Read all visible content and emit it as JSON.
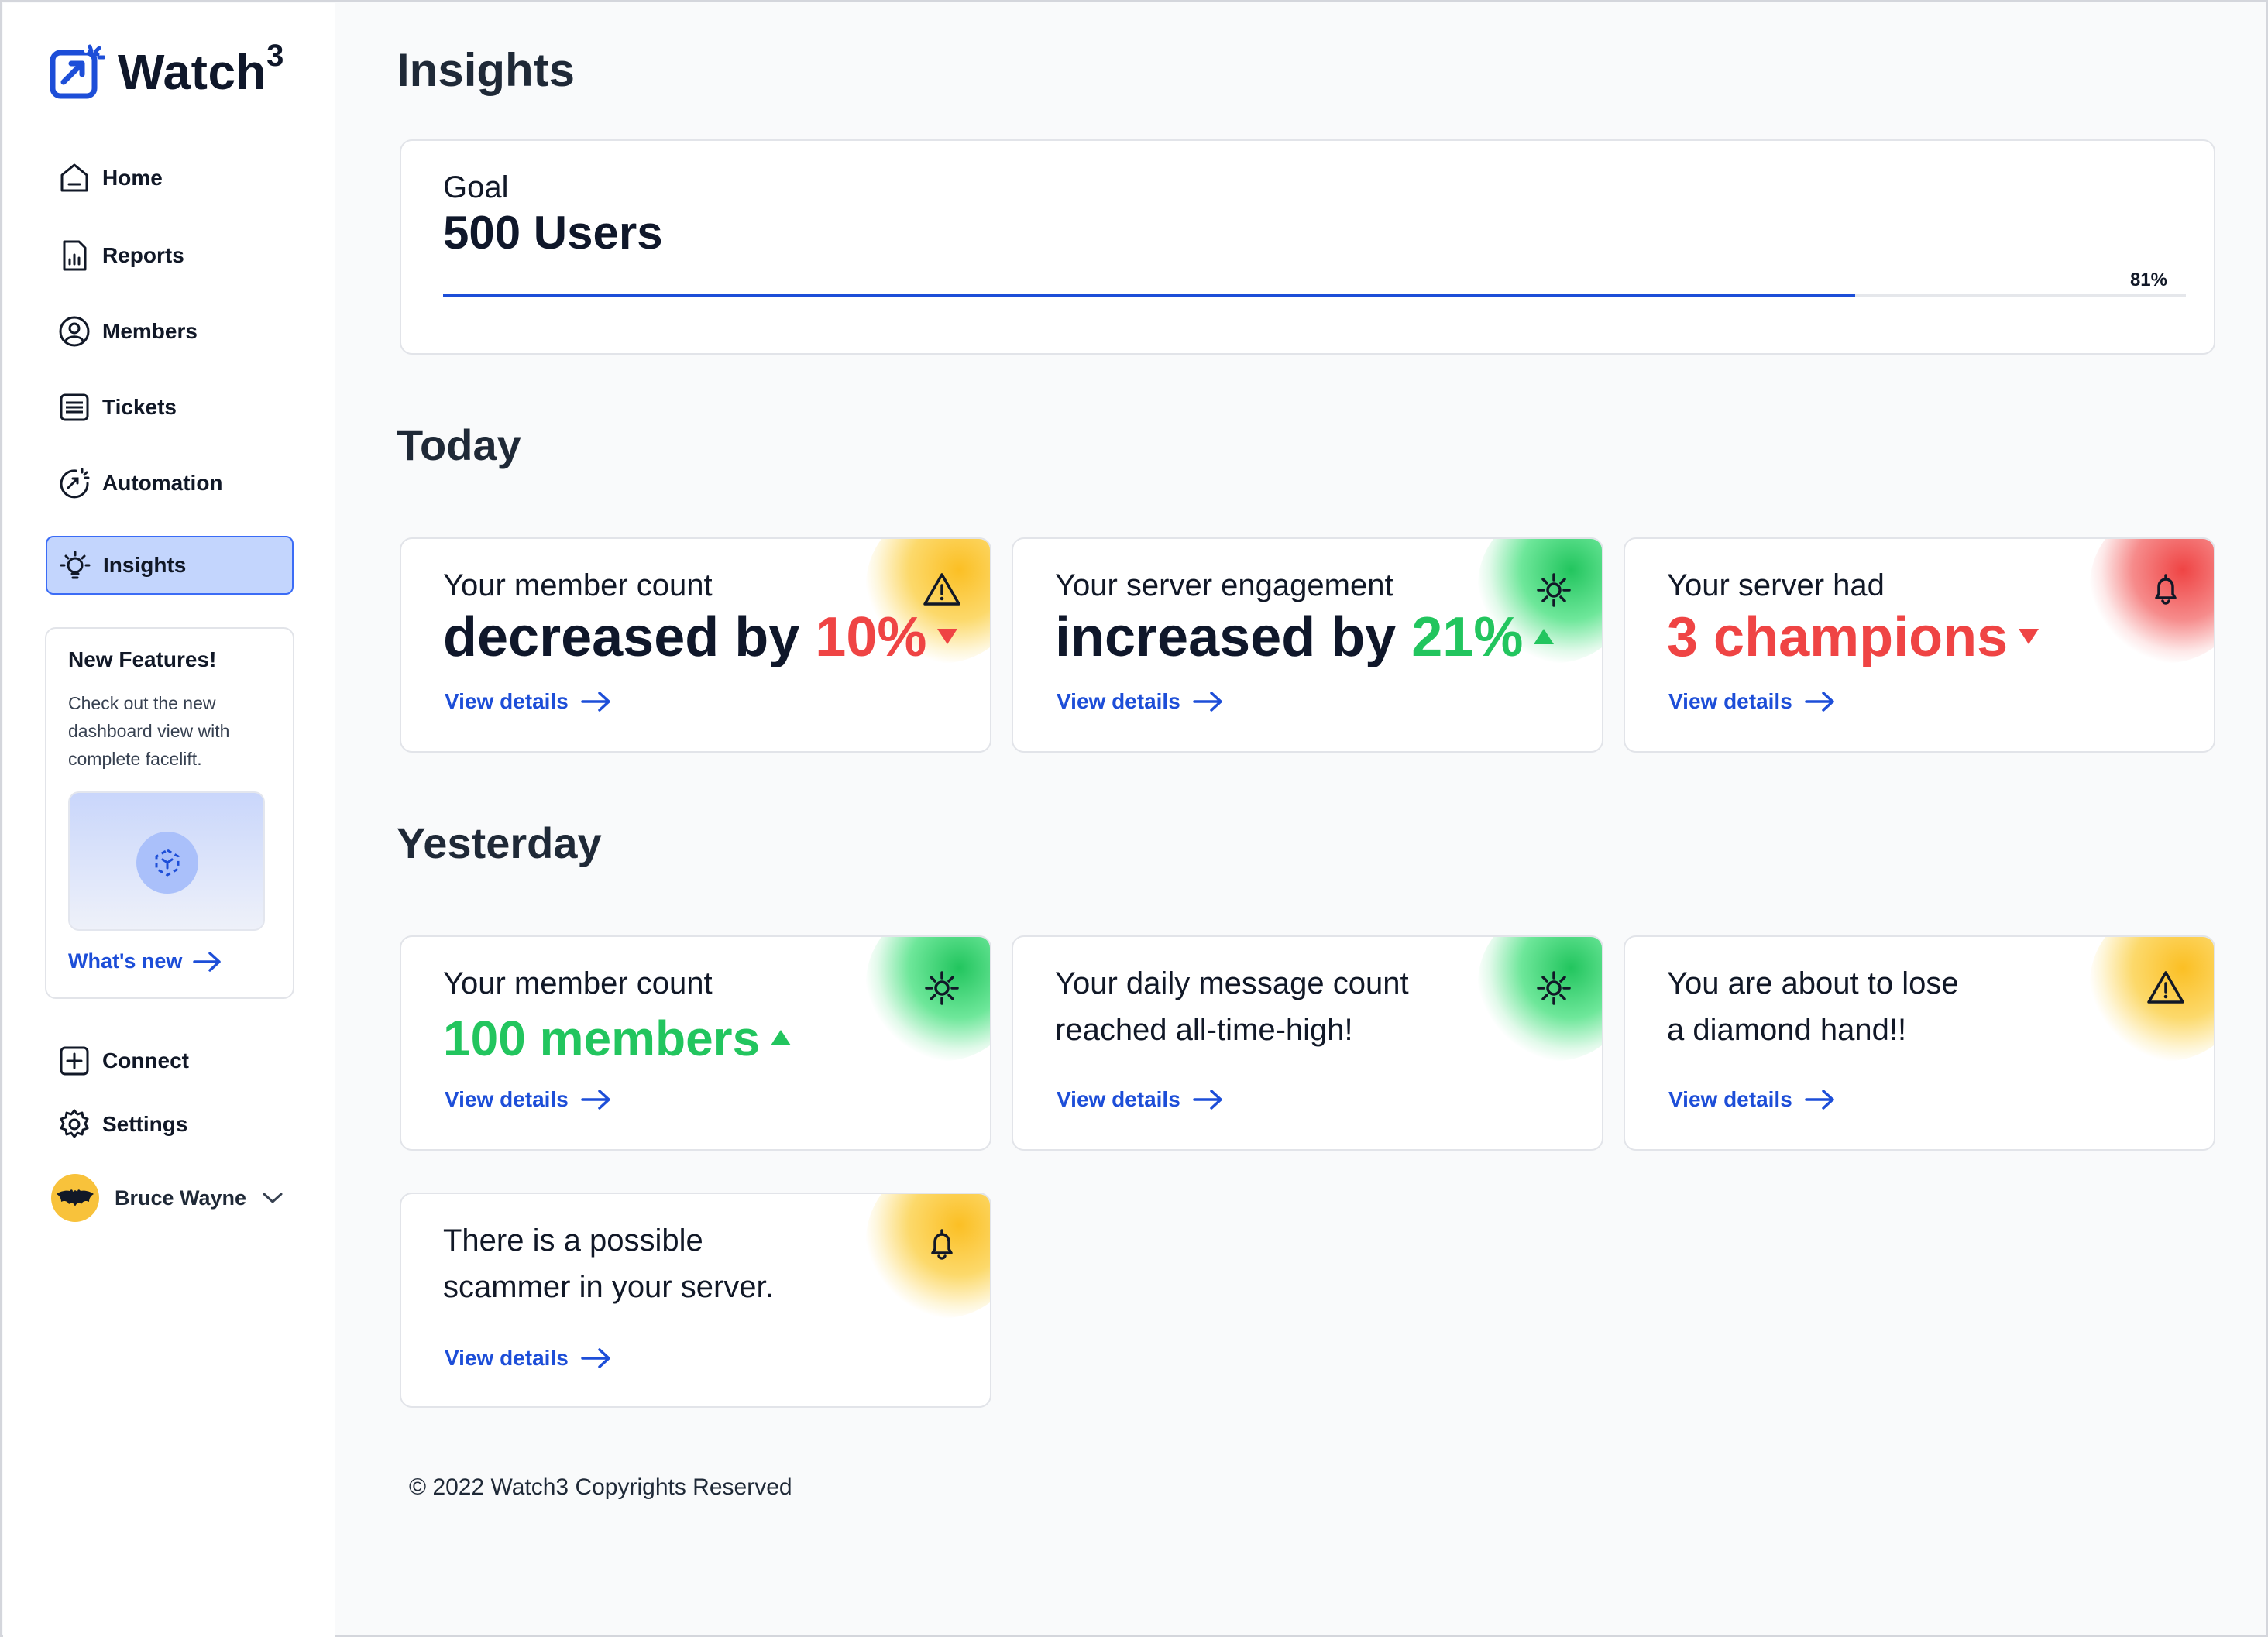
{
  "app": {
    "name": "Watch",
    "superscript": "3"
  },
  "sidebar": {
    "items": [
      {
        "label": "Home",
        "icon": "home-icon"
      },
      {
        "label": "Reports",
        "icon": "report-icon"
      },
      {
        "label": "Members",
        "icon": "user-circle-icon"
      },
      {
        "label": "Tickets",
        "icon": "ticket-icon"
      },
      {
        "label": "Automation",
        "icon": "automation-icon"
      },
      {
        "label": "Insights",
        "icon": "lightbulb-icon",
        "active": true
      }
    ],
    "feature": {
      "title": "New Features!",
      "description": "Check out the new dashboard view with complete facelift.",
      "link": "What's new"
    },
    "bottom_items": [
      {
        "label": "Connect",
        "icon": "plus-square-icon"
      },
      {
        "label": "Settings",
        "icon": "gear-icon"
      }
    ],
    "user": {
      "name": "Bruce Wayne",
      "avatar": "bat-logo-avatar"
    }
  },
  "page": {
    "title": "Insights"
  },
  "goal": {
    "label": "Goal",
    "value": "500 Users",
    "progress_percent": 81,
    "progress_text": "81%"
  },
  "sections": {
    "today": "Today",
    "yesterday": "Yesterday"
  },
  "today_cards": [
    {
      "line1": "Your member count",
      "prefix": "decreased by ",
      "highlight": "10%",
      "trend": "down",
      "icon": "warning-icon",
      "glow": "yellow",
      "link": "View details"
    },
    {
      "line1": "Your server engagement",
      "prefix": "increased by ",
      "highlight": "21%",
      "trend": "up",
      "icon": "sparkle-icon",
      "glow": "green",
      "link": "View details"
    },
    {
      "line1": "Your server had",
      "prefix": "",
      "highlight": "3 champions",
      "trend": "down",
      "icon": "bell-icon",
      "glow": "red",
      "link": "View details"
    }
  ],
  "yesterday_cards": [
    {
      "line1": "Your member count",
      "highlight": "100 members",
      "trend": "up",
      "icon": "sparkle-icon",
      "glow": "green",
      "link": "View details"
    },
    {
      "line1": "Your daily message count",
      "line2": "reached all-time-high!",
      "icon": "sparkle-icon",
      "glow": "green",
      "link": "View details"
    },
    {
      "line1": "You are about to lose",
      "line2": "a diamond hand!!",
      "icon": "warning-icon",
      "glow": "yellow",
      "link": "View details"
    },
    {
      "line1": "There is a possible",
      "line2": "scammer in your server.",
      "icon": "bell-icon",
      "glow": "yellow",
      "link": "View details"
    }
  ],
  "colors": {
    "accent": "#1d4ed8",
    "negative": "#ef4444",
    "positive": "#22c55e",
    "warning": "#fbbf24"
  },
  "footer": "© 2022 Watch3 Copyrights Reserved"
}
